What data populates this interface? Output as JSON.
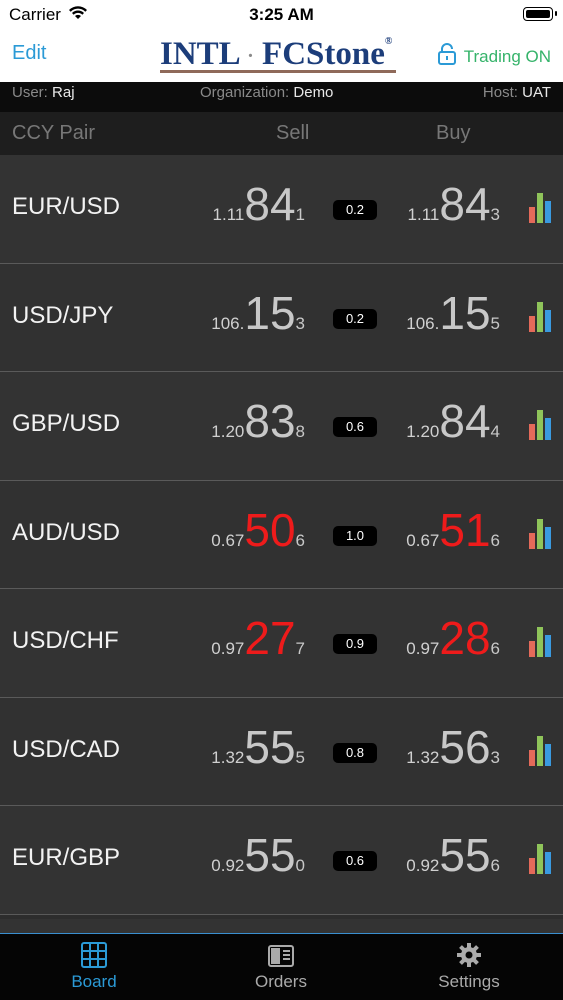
{
  "status": {
    "carrier": "Carrier",
    "time": "3:25 AM"
  },
  "nav": {
    "edit": "Edit",
    "logo_left": "INTL",
    "logo_right": "FCStone",
    "trading": "Trading ON"
  },
  "info": {
    "user_label": "User:",
    "user": "Raj",
    "org_label": "Organization:",
    "org": "Demo",
    "host_label": "Host:",
    "host": "UAT"
  },
  "columns": {
    "pair": "CCY Pair",
    "sell": "Sell",
    "buy": "Buy"
  },
  "rows": [
    {
      "pair": "EUR/USD",
      "sell": {
        "pre": "1.11",
        "big": "84",
        "pip": "1"
      },
      "spread": "0.2",
      "buy": {
        "pre": "1.11",
        "big": "84",
        "pip": "3"
      }
    },
    {
      "pair": "USD/JPY",
      "sell": {
        "pre": "106.",
        "big": "15",
        "pip": "3"
      },
      "spread": "0.2",
      "buy": {
        "pre": "106.",
        "big": "15",
        "pip": "5"
      }
    },
    {
      "pair": "GBP/USD",
      "sell": {
        "pre": "1.20",
        "big": "83",
        "pip": "8"
      },
      "spread": "0.6",
      "buy": {
        "pre": "1.20",
        "big": "84",
        "pip": "4"
      }
    },
    {
      "pair": "AUD/USD",
      "sell": {
        "pre": "0.67",
        "big": "50",
        "pip": "6"
      },
      "spread": "1.0",
      "buy": {
        "pre": "0.67",
        "big": "51",
        "pip": "6"
      }
    },
    {
      "pair": "USD/CHF",
      "sell": {
        "pre": "0.97",
        "big": "27",
        "pip": "7"
      },
      "spread": "0.9",
      "buy": {
        "pre": "0.97",
        "big": "28",
        "pip": "6"
      }
    },
    {
      "pair": "USD/CAD",
      "sell": {
        "pre": "1.32",
        "big": "55",
        "pip": "5"
      },
      "spread": "0.8",
      "buy": {
        "pre": "1.32",
        "big": "56",
        "pip": "3"
      }
    },
    {
      "pair": "EUR/GBP",
      "sell": {
        "pre": "0.92",
        "big": "55",
        "pip": "0"
      },
      "spread": "0.6",
      "buy": {
        "pre": "0.92",
        "big": "55",
        "pip": "6"
      }
    }
  ],
  "tabs": {
    "board": "Board",
    "orders": "Orders",
    "settings": "Settings"
  },
  "colors": {
    "accent": "#2b9ad6",
    "trading_on": "#35b36a",
    "price_down": "#ee1b1b"
  }
}
